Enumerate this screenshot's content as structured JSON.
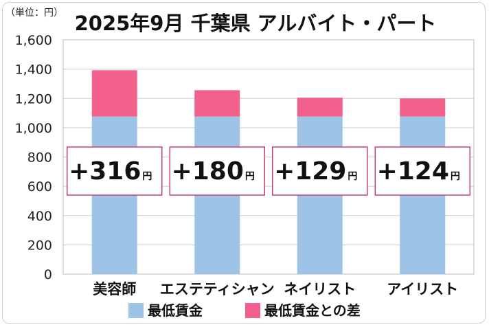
{
  "chart_data": {
    "type": "bar",
    "stacked": true,
    "title": "2025年9月 千葉県 アルバイト・パート",
    "unit_label": "（単位：円）",
    "categories": [
      "美容師",
      "エステティシャン",
      "ネイリスト",
      "アイリスト"
    ],
    "series": [
      {
        "name": "最低賃金",
        "values": [
          1076,
          1076,
          1076,
          1076
        ],
        "color": "#9dc3e6"
      },
      {
        "name": "最低賃金との差",
        "values": [
          316,
          180,
          129,
          124
        ],
        "color": "#f2608c"
      }
    ],
    "data_labels": [
      "+316円",
      "+180円",
      "+129円",
      "+124円"
    ],
    "ylim": [
      0,
      1600
    ],
    "yticks": [
      "0",
      "200",
      "400",
      "600",
      "800",
      "1,000",
      "1,200",
      "1,400",
      "1,600"
    ],
    "ytick_values": [
      0,
      200,
      400,
      600,
      800,
      1000,
      1200,
      1400,
      1600
    ],
    "grid": true,
    "legend_position": "bottom"
  }
}
